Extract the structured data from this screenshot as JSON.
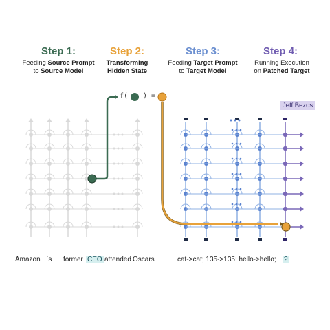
{
  "steps": [
    {
      "title": "Step 1:",
      "color": "#3b6b52",
      "desc_pre": "Feeding ",
      "desc_bold": "Source Prompt",
      "desc_mid": "to ",
      "desc_bold2": "Source Model"
    },
    {
      "title": "Step 2:",
      "color": "#e8a23a",
      "desc_bold": "Transforming",
      "desc_bold2": "Hidden State"
    },
    {
      "title": "Step 3:",
      "color": "#6b8fd0",
      "desc_pre": "Feeding ",
      "desc_bold": "Target Prompt",
      "desc_mid": "to ",
      "desc_bold2": "Target Model"
    },
    {
      "title": "Step 4:",
      "color": "#6f5bb0",
      "desc_pre": "Running Execution",
      "desc_mid": "on ",
      "desc_bold2": "Patched Target"
    }
  ],
  "function_label": {
    "prefix": "f(",
    "suffix": ") ="
  },
  "source_tokens": [
    "Amazon",
    "`s",
    "former",
    "CEO",
    "attended",
    "Oscars"
  ],
  "highlighted_source_token": "CEO",
  "target_prompt": "cat->cat; 135->135; hello->hello;",
  "target_query": "?",
  "output_answer": "Jeff Bezos",
  "colors": {
    "source_grid": "#d9d9d9",
    "target_grid": "#8fb0e3",
    "target_node": "#5a82cf",
    "output_col": "#7a68b8",
    "source_state": "#3b6b52",
    "patched_state": "#e8a23a"
  }
}
